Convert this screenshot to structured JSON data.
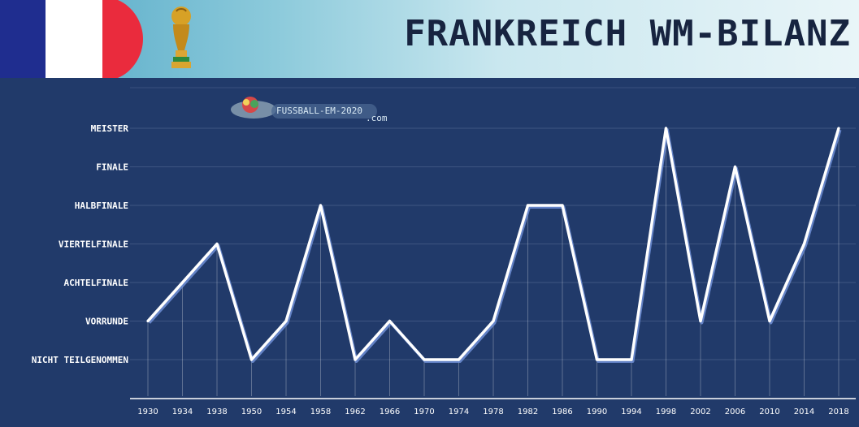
{
  "header": {
    "title": "FRANKREICH WM-BILANZ",
    "flag_colors": {
      "blue": "#1f2d8f",
      "white": "#ffffff",
      "red": "#ea2b3d"
    },
    "trophy_icon": "world-cup-trophy-icon"
  },
  "watermark": {
    "text": "FUSSBALL-EM-2020",
    "subtext": ".com"
  },
  "colors": {
    "panel": "#213a6a",
    "line": "#ffffff",
    "line_shadow": "#6f8fd6",
    "grid": "#8b9cc0"
  },
  "chart_data": {
    "type": "line",
    "title": "FRANKREICH WM-BILANZ",
    "xlabel": "",
    "ylabel": "",
    "categories": [
      "1930",
      "1934",
      "1938",
      "1950",
      "1954",
      "1958",
      "1962",
      "1966",
      "1970",
      "1974",
      "1978",
      "1982",
      "1986",
      "1990",
      "1994",
      "1998",
      "2002",
      "2006",
      "2010",
      "2014",
      "2018"
    ],
    "levels": [
      "Nicht teilgenommen",
      "Vorrunde",
      "Achtelfinale",
      "Viertelfinale",
      "Halbfinale",
      "Finale",
      "Meister"
    ],
    "series": [
      {
        "values": [
          1,
          2,
          3,
          0,
          1,
          4,
          0,
          1,
          0,
          0,
          1,
          4,
          4,
          0,
          0,
          6,
          1,
          5,
          1,
          3,
          6
        ]
      }
    ],
    "ylim": [
      0,
      6
    ],
    "grid": true,
    "legend": "none"
  }
}
